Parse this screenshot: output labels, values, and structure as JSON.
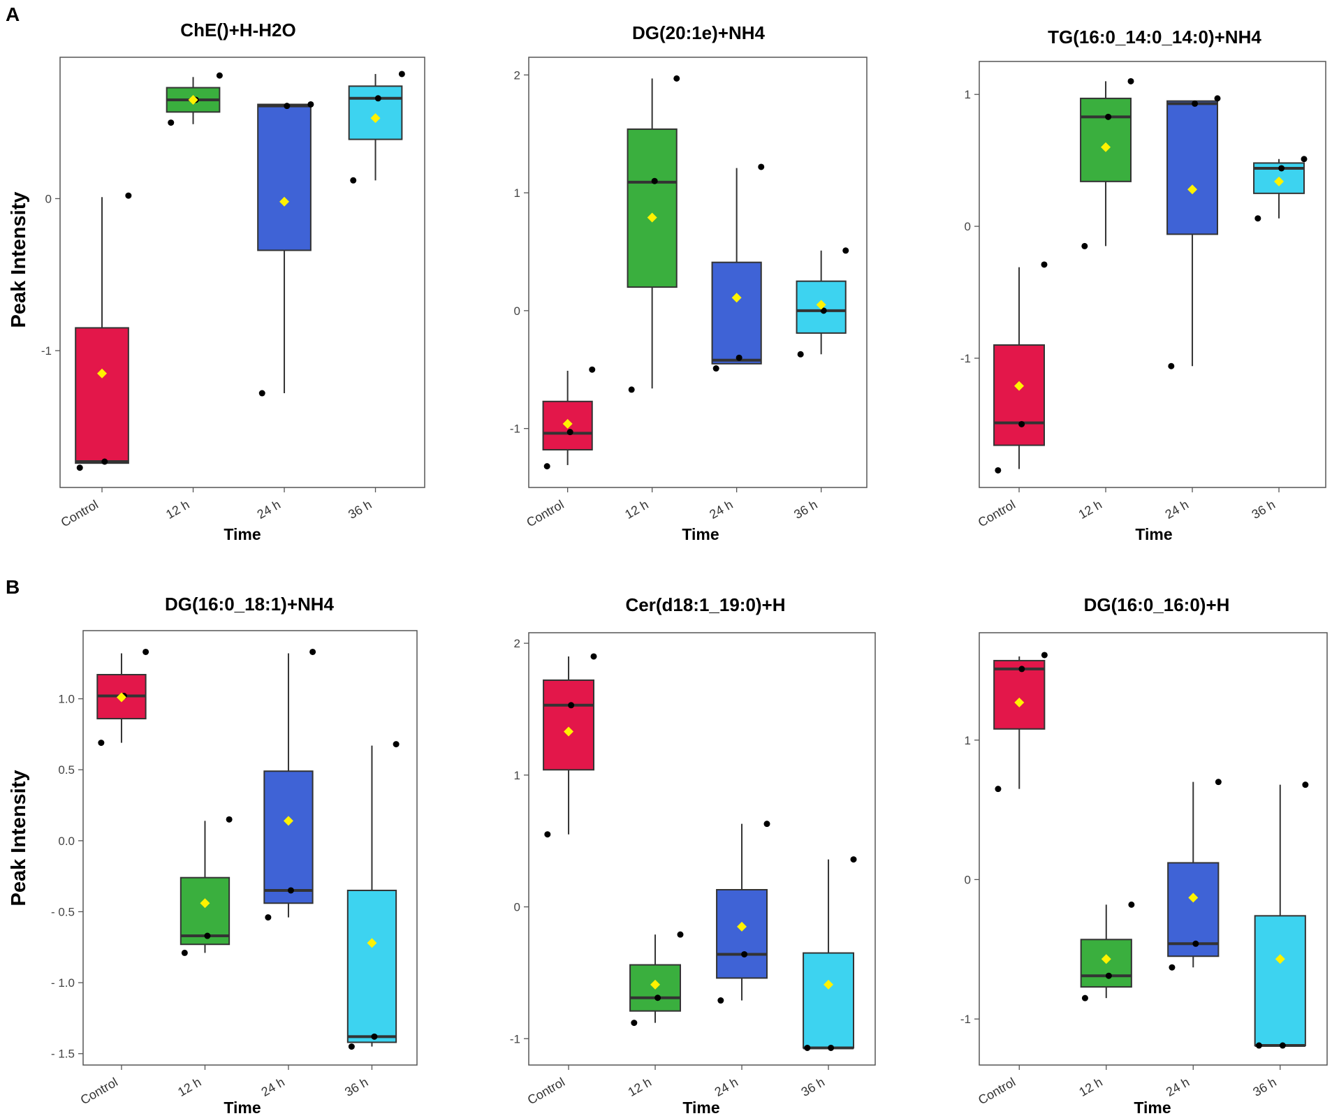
{
  "panel_labels": [
    "A",
    "B"
  ],
  "colors": {
    "group_fills": [
      "#E3174A",
      "#3AAF3E",
      "#3F63D6",
      "#3DD3F0"
    ],
    "mean_marker": "#FFF200",
    "point": "#000000",
    "median": "#333333"
  },
  "chart_data": [
    {
      "type": "boxplot",
      "title": "ChE()+H-H2O",
      "panel": "A",
      "xlabel": "Time",
      "ylabel": "Peak Intensity",
      "categories": [
        "Control",
        "12 h",
        "24 h",
        "36 h"
      ],
      "yticks": [
        0,
        -1
      ],
      "ytick_labels": [
        "0",
        "-1"
      ],
      "ylim": [
        -1.9,
        0.93
      ],
      "boxes": [
        {
          "q1": -1.74,
          "median": -1.73,
          "q3": -0.85,
          "whisker_low": -1.74,
          "whisker_high": 0.01,
          "mean": -1.15,
          "points": [
            -1.77,
            -1.73,
            0.02
          ]
        },
        {
          "q1": 0.57,
          "median": 0.65,
          "q3": 0.73,
          "whisker_low": 0.49,
          "whisker_high": 0.8,
          "mean": 0.65,
          "points": [
            0.5,
            0.65,
            0.81
          ]
        },
        {
          "q1": -0.34,
          "median": 0.61,
          "q3": 0.62,
          "whisker_low": -1.28,
          "whisker_high": 0.62,
          "mean": -0.02,
          "points": [
            -1.28,
            0.61,
            0.62
          ]
        },
        {
          "q1": 0.39,
          "median": 0.66,
          "q3": 0.74,
          "whisker_low": 0.12,
          "whisker_high": 0.82,
          "mean": 0.53,
          "points": [
            0.12,
            0.66,
            0.82
          ]
        }
      ]
    },
    {
      "type": "boxplot",
      "title": "DG(20:1e)+NH4",
      "panel": "A",
      "xlabel": "Time",
      "ylabel": "",
      "categories": [
        "Control",
        "12 h",
        "24 h",
        "36 h"
      ],
      "yticks": [
        2,
        1,
        0,
        -1
      ],
      "ytick_labels": [
        "2",
        "1",
        "0",
        "-1"
      ],
      "ylim": [
        -1.5,
        2.15
      ],
      "boxes": [
        {
          "q1": -1.18,
          "median": -1.04,
          "q3": -0.77,
          "whisker_low": -1.31,
          "whisker_high": -0.51,
          "mean": -0.96,
          "points": [
            -1.32,
            -1.03,
            -0.5
          ]
        },
        {
          "q1": 0.2,
          "median": 1.09,
          "q3": 1.54,
          "whisker_low": -0.66,
          "whisker_high": 1.97,
          "mean": 0.79,
          "points": [
            -0.67,
            1.1,
            1.97
          ]
        },
        {
          "q1": -0.45,
          "median": -0.42,
          "q3": 0.41,
          "whisker_low": -0.45,
          "whisker_high": 1.21,
          "mean": 0.11,
          "points": [
            -0.49,
            -0.4,
            1.22
          ]
        },
        {
          "q1": -0.19,
          "median": 0.0,
          "q3": 0.25,
          "whisker_low": -0.37,
          "whisker_high": 0.51,
          "mean": 0.05,
          "points": [
            -0.37,
            0.0,
            0.51
          ]
        }
      ]
    },
    {
      "type": "boxplot",
      "title": "TG(16:0_14:0_14:0)+NH4",
      "panel": "A",
      "xlabel": "Time",
      "ylabel": "",
      "categories": [
        "Control",
        "12 h",
        "24 h",
        "36 h"
      ],
      "yticks": [
        1,
        0,
        -1
      ],
      "ytick_labels": [
        "1",
        "0",
        "-1"
      ],
      "ylim": [
        -1.98,
        1.25
      ],
      "boxes": [
        {
          "q1": -1.66,
          "median": -1.49,
          "q3": -0.9,
          "whisker_low": -1.84,
          "whisker_high": -0.31,
          "mean": -1.21,
          "points": [
            -1.85,
            -1.5,
            -0.29
          ]
        },
        {
          "q1": 0.34,
          "median": 0.83,
          "q3": 0.97,
          "whisker_low": -0.15,
          "whisker_high": 1.1,
          "mean": 0.6,
          "points": [
            -0.15,
            0.83,
            1.1
          ]
        },
        {
          "q1": -0.06,
          "median": 0.93,
          "q3": 0.95,
          "whisker_low": -1.06,
          "whisker_high": 0.95,
          "mean": 0.28,
          "points": [
            -1.06,
            0.93,
            0.97
          ]
        },
        {
          "q1": 0.25,
          "median": 0.44,
          "q3": 0.48,
          "whisker_low": 0.06,
          "whisker_high": 0.51,
          "mean": 0.34,
          "points": [
            0.06,
            0.44,
            0.51
          ]
        }
      ]
    },
    {
      "type": "boxplot",
      "title": "DG(16:0_18:1)+NH4",
      "panel": "B",
      "xlabel": "Time",
      "ylabel": "Peak Intensity",
      "categories": [
        "Control",
        "12 h",
        "24 h",
        "36 h"
      ],
      "yticks": [
        1.0,
        0.5,
        0.0,
        -0.5,
        -1.0,
        -1.5
      ],
      "ytick_labels": [
        "1.0",
        "0.5",
        "0.0",
        "- 0.5",
        "- 1.0",
        "- 1.5"
      ],
      "ylim": [
        -1.58,
        1.48
      ],
      "boxes": [
        {
          "q1": 0.86,
          "median": 1.02,
          "q3": 1.17,
          "whisker_low": 0.69,
          "whisker_high": 1.32,
          "mean": 1.01,
          "points": [
            0.69,
            1.02,
            1.33
          ]
        },
        {
          "q1": -0.73,
          "median": -0.67,
          "q3": -0.26,
          "whisker_low": -0.79,
          "whisker_high": 0.14,
          "mean": -0.44,
          "points": [
            -0.79,
            -0.67,
            0.15
          ]
        },
        {
          "q1": -0.44,
          "median": -0.35,
          "q3": 0.49,
          "whisker_low": -0.54,
          "whisker_high": 1.32,
          "mean": 0.14,
          "points": [
            -0.54,
            -0.35,
            1.33
          ]
        },
        {
          "q1": -1.42,
          "median": -1.38,
          "q3": -0.35,
          "whisker_low": -1.45,
          "whisker_high": 0.67,
          "mean": -0.72,
          "points": [
            -1.45,
            -1.38,
            0.68
          ]
        }
      ]
    },
    {
      "type": "boxplot",
      "title": "Cer(d18:1_19:0)+H",
      "panel": "B",
      "xlabel": "Time",
      "ylabel": "",
      "categories": [
        "Control",
        "12 h",
        "24 h",
        "36 h"
      ],
      "yticks": [
        2,
        1,
        0,
        -1
      ],
      "ytick_labels": [
        "2",
        "1",
        "0",
        "-1"
      ],
      "ylim": [
        -1.2,
        2.08
      ],
      "boxes": [
        {
          "q1": 1.04,
          "median": 1.53,
          "q3": 1.72,
          "whisker_low": 0.55,
          "whisker_high": 1.9,
          "mean": 1.33,
          "points": [
            0.55,
            1.53,
            1.9
          ]
        },
        {
          "q1": -0.79,
          "median": -0.69,
          "q3": -0.44,
          "whisker_low": -0.88,
          "whisker_high": -0.21,
          "mean": -0.59,
          "points": [
            -0.88,
            -0.69,
            -0.21
          ]
        },
        {
          "q1": -0.54,
          "median": -0.36,
          "q3": 0.13,
          "whisker_low": -0.71,
          "whisker_high": 0.63,
          "mean": -0.15,
          "points": [
            -0.71,
            -0.36,
            0.63
          ]
        },
        {
          "q1": -1.07,
          "median": -1.07,
          "q3": -0.35,
          "whisker_low": -1.07,
          "whisker_high": 0.36,
          "mean": -0.59,
          "points": [
            -1.07,
            -1.07,
            0.36
          ]
        }
      ]
    },
    {
      "type": "boxplot",
      "title": "DG(16:0_16:0)+H",
      "panel": "B",
      "xlabel": "Time",
      "ylabel": "",
      "categories": [
        "Control",
        "12 h",
        "24 h",
        "36 h"
      ],
      "yticks": [
        1,
        0,
        -1
      ],
      "ytick_labels": [
        "1",
        "0",
        "-1"
      ],
      "ylim": [
        -1.33,
        1.77
      ],
      "boxes": [
        {
          "q1": 1.08,
          "median": 1.51,
          "q3": 1.57,
          "whisker_low": 0.65,
          "whisker_high": 1.6,
          "mean": 1.27,
          "points": [
            0.65,
            1.51,
            1.61
          ]
        },
        {
          "q1": -0.77,
          "median": -0.69,
          "q3": -0.43,
          "whisker_low": -0.85,
          "whisker_high": -0.18,
          "mean": -0.57,
          "points": [
            -0.85,
            -0.69,
            -0.18
          ]
        },
        {
          "q1": -0.55,
          "median": -0.46,
          "q3": 0.12,
          "whisker_low": -0.63,
          "whisker_high": 0.7,
          "mean": -0.13,
          "points": [
            -0.63,
            -0.46,
            0.7
          ]
        },
        {
          "q1": -1.19,
          "median": -1.19,
          "q3": -0.26,
          "whisker_low": -1.19,
          "whisker_high": 0.68,
          "mean": -0.57,
          "points": [
            -1.19,
            -1.19,
            0.68
          ]
        }
      ]
    }
  ]
}
